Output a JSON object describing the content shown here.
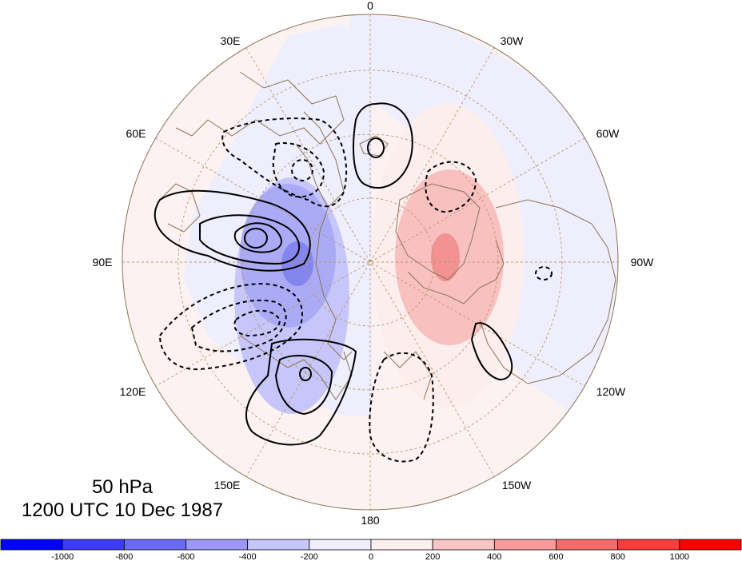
{
  "map": {
    "projection": "polar-stereographic-north",
    "longitude_labels": {
      "top": "0",
      "upper_left": "30E",
      "upper_right": "30W",
      "left_upper": "60E",
      "right_upper": "60W",
      "left": "90E",
      "right": "90W",
      "left_lower": "120E",
      "right_lower": "120W",
      "lower_left": "150E",
      "lower_right": "150W",
      "bottom": "180"
    }
  },
  "caption": {
    "level": "50 hPa",
    "time": "1200 UTC 10 Dec 1987"
  },
  "colorbar": {
    "tick_labels": [
      "-1000",
      "-800",
      "-600",
      "-400",
      "-200",
      "0",
      "200",
      "400",
      "600",
      "800",
      "1000"
    ],
    "colors": [
      "#0000ff",
      "#3d3df9",
      "#6a6af5",
      "#9a9af6",
      "#c6c6fa",
      "#eeeefd",
      "#fdeeee",
      "#f9c6c6",
      "#f69a9a",
      "#f56a6a",
      "#f93d3d",
      "#ff0000"
    ]
  },
  "colors": {
    "map_background": "#fdf2f2",
    "land_outline": "#8b7355",
    "graticule": "#b8976a",
    "contour": "#000000",
    "anomaly_neg_weak": "#eeeefd",
    "anomaly_neg_mid": "#c6c6fa",
    "anomaly_neg_strong": "#9a9af6",
    "anomaly_pos_weak": "#fdeeee",
    "anomaly_pos_mid": "#f9c6c6",
    "anomaly_pos_strong": "#f69a9a"
  }
}
